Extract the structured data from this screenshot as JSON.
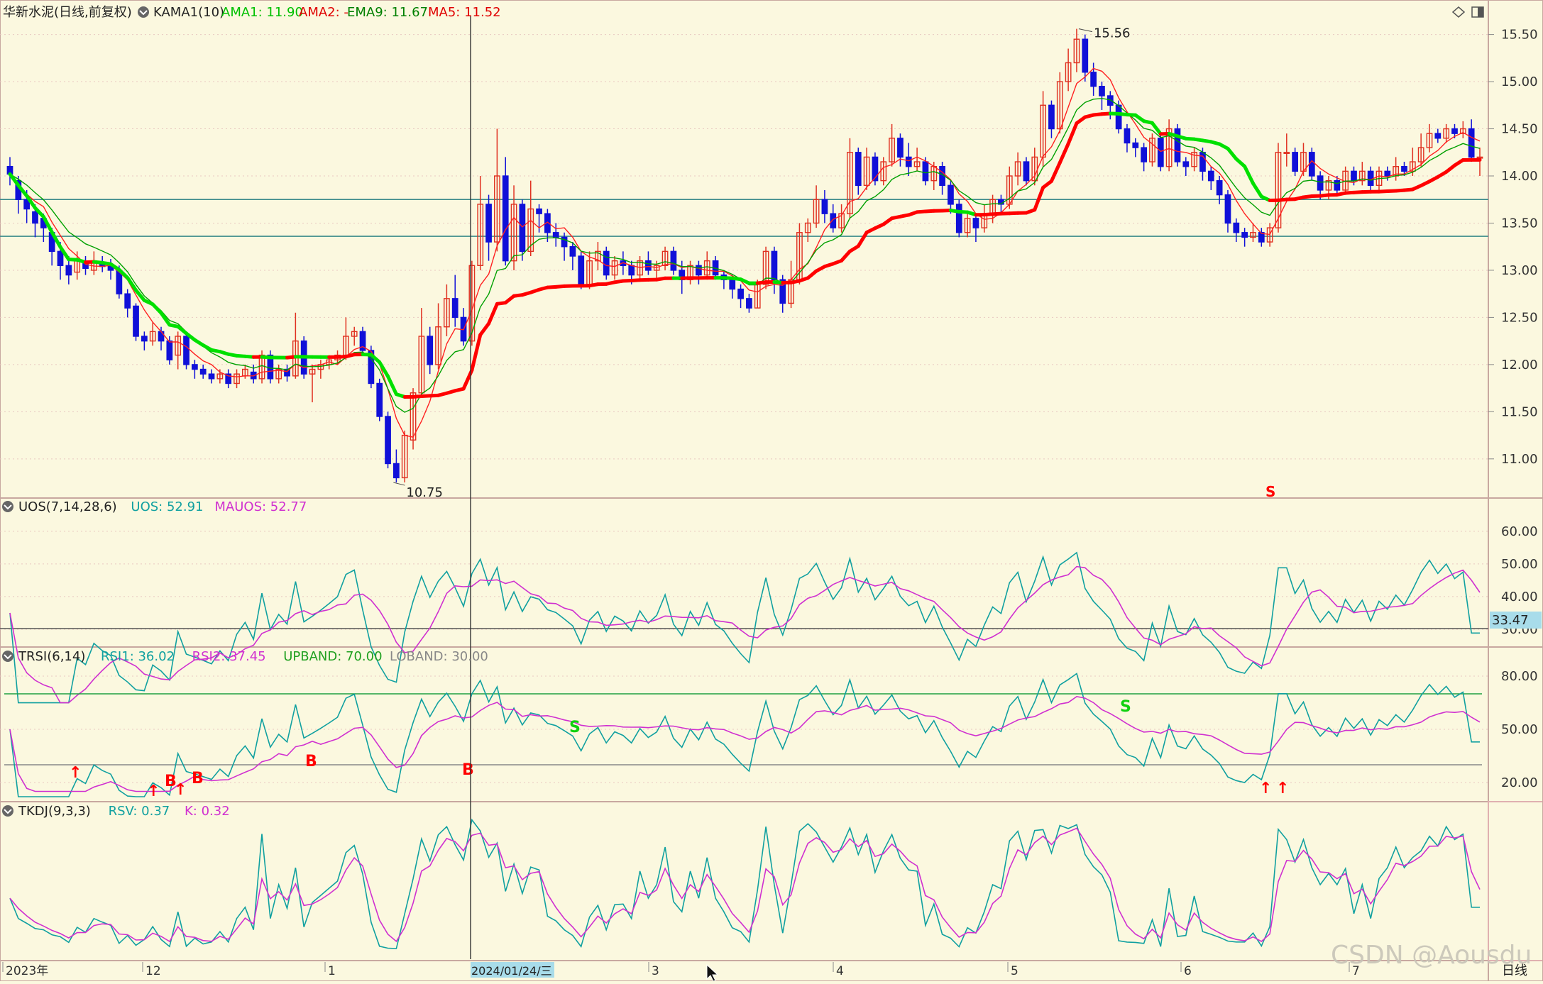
{
  "colors": {
    "background": "#fbf8df",
    "grid": "#e8c8c0",
    "separator": "#b0a890",
    "up_candle": "#e03020",
    "down_candle": "#1010d8",
    "kama_up": "#ff0000",
    "kama_down": "#00e000",
    "ema9": "#00a000",
    "ma5": "#ff2020",
    "cyan": "#10a0a0",
    "magenta": "#d030d0",
    "band": "#20a040",
    "hline": "#3a8a8a",
    "signal_red": "#ff0000",
    "signal_green": "#10d010"
  },
  "header": {
    "stock": "华新水泥(日线,前复权)",
    "indicator": "KAMA1(10)",
    "ama1": "AMA1: 11.90",
    "ama2": "AMA2: -",
    "ema9": "EMA9: 11.67",
    "ma5": "MA5: 11.52",
    "icons": [
      "diamond-icon",
      "window-toggle-icon"
    ]
  },
  "price_pane": {
    "ticks": [
      "15.50",
      "15.00",
      "14.50",
      "14.00",
      "13.50",
      "13.00",
      "12.50",
      "12.00",
      "11.50",
      "11.00"
    ],
    "high_label": "15.56",
    "low_label": "10.75",
    "sell_marker": "S"
  },
  "uos_pane": {
    "name": "UOS(7,14,28,6)",
    "uos": "UOS: 52.91",
    "mauos": "MAUOS: 52.77",
    "ticks": [
      "60.00",
      "50.00",
      "40.00",
      "30.00"
    ],
    "cursor_value": "33.47"
  },
  "trsi_pane": {
    "name": "TRSI(6,14)",
    "rsi1": "RSI1: 36.02",
    "rsi2": "RSI2: 37.45",
    "upband": "UPBAND: 70.00",
    "loband": "LOBAND: 30.00",
    "ticks": [
      "80.00",
      "50.00",
      "20.00"
    ],
    "buy_label": "B",
    "sell_label": "S"
  },
  "tkdj_pane": {
    "name": "TKDJ(9,3,3)",
    "rsv": "RSV: 0.37",
    "k": "K: 0.32"
  },
  "time_axis": {
    "labels": [
      "2023年",
      "12",
      "1",
      "2024/01/24/三",
      "3",
      "4",
      "5",
      "6",
      "7"
    ],
    "period": "日线"
  },
  "watermark": "CSDN @Aousdu",
  "chart_data": {
    "type": "candlestick",
    "period": "daily",
    "y_range": [
      10.6,
      15.7
    ],
    "y_ticks": [
      15.5,
      15.0,
      14.5,
      14.0,
      13.5,
      13.0,
      12.5,
      12.0,
      11.5,
      11.0
    ],
    "high": 15.56,
    "low": 10.75,
    "horizontal_levels": [
      13.75,
      13.36
    ],
    "candles": [
      [
        14.1,
        14.02,
        14.2,
        13.9
      ],
      [
        13.95,
        13.75,
        14.0,
        13.6
      ],
      [
        13.75,
        13.65,
        13.85,
        13.5
      ],
      [
        13.62,
        13.5,
        13.7,
        13.35
      ],
      [
        13.55,
        13.45,
        13.6,
        13.3
      ],
      [
        13.4,
        13.2,
        13.45,
        13.05
      ],
      [
        13.2,
        13.05,
        13.3,
        12.9
      ],
      [
        13.05,
        12.95,
        13.15,
        12.85
      ],
      [
        12.98,
        13.1,
        13.2,
        12.9
      ],
      [
        13.08,
        13.02,
        13.15,
        12.95
      ],
      [
        13.0,
        13.1,
        13.2,
        12.95
      ],
      [
        13.08,
        13.04,
        13.15,
        12.98
      ],
      [
        13.05,
        13.0,
        13.12,
        12.9
      ],
      [
        13.0,
        12.75,
        13.05,
        12.7
      ],
      [
        12.75,
        12.6,
        12.8,
        12.5
      ],
      [
        12.62,
        12.3,
        12.65,
        12.25
      ],
      [
        12.3,
        12.25,
        12.35,
        12.15
      ],
      [
        12.25,
        12.35,
        12.45,
        12.2
      ],
      [
        12.35,
        12.25,
        12.4,
        12.15
      ],
      [
        12.25,
        12.05,
        12.3,
        12.0
      ],
      [
        12.1,
        12.3,
        12.35,
        11.95
      ],
      [
        12.3,
        12.0,
        12.35,
        11.95
      ],
      [
        12.0,
        11.95,
        12.05,
        11.85
      ],
      [
        11.95,
        11.9,
        12.0,
        11.85
      ],
      [
        11.9,
        11.85,
        11.95,
        11.8
      ],
      [
        11.85,
        11.9,
        11.95,
        11.8
      ],
      [
        11.9,
        11.8,
        11.95,
        11.75
      ],
      [
        11.8,
        11.9,
        11.95,
        11.75
      ],
      [
        11.88,
        11.95,
        12.0,
        11.85
      ],
      [
        11.92,
        11.85,
        12.0,
        11.8
      ],
      [
        11.85,
        12.1,
        12.15,
        11.8
      ],
      [
        12.1,
        11.85,
        12.15,
        11.8
      ],
      [
        11.85,
        11.95,
        12.0,
        11.8
      ],
      [
        11.95,
        11.88,
        12.0,
        11.82
      ],
      [
        11.88,
        12.25,
        12.55,
        11.85
      ],
      [
        12.25,
        11.9,
        12.3,
        11.85
      ],
      [
        11.9,
        11.95,
        12.0,
        11.6
      ],
      [
        11.95,
        12.0,
        12.05,
        11.85
      ],
      [
        12.0,
        12.05,
        12.1,
        11.95
      ],
      [
        12.05,
        12.1,
        12.15,
        12.0
      ],
      [
        12.1,
        12.3,
        12.5,
        12.05
      ],
      [
        12.3,
        12.35,
        12.4,
        12.2
      ],
      [
        12.35,
        12.15,
        12.4,
        12.1
      ],
      [
        12.15,
        11.8,
        12.2,
        11.75
      ],
      [
        11.8,
        11.45,
        11.85,
        11.4
      ],
      [
        11.45,
        10.95,
        11.5,
        10.9
      ],
      [
        10.95,
        10.8,
        11.1,
        10.75
      ],
      [
        10.8,
        11.25,
        11.3,
        10.75
      ],
      [
        11.2,
        11.7,
        11.75,
        11.1
      ],
      [
        11.7,
        12.3,
        12.6,
        11.65
      ],
      [
        12.3,
        12.0,
        12.4,
        11.9
      ],
      [
        12.0,
        12.4,
        12.65,
        11.95
      ],
      [
        12.4,
        12.7,
        12.85,
        12.3
      ],
      [
        12.7,
        12.5,
        12.95,
        12.4
      ],
      [
        12.5,
        12.25,
        12.6,
        12.2
      ],
      [
        12.25,
        13.05,
        13.1,
        12.2
      ],
      [
        13.05,
        13.7,
        14.0,
        13.0
      ],
      [
        13.7,
        13.3,
        13.8,
        13.1
      ],
      [
        13.3,
        14.0,
        14.5,
        13.2
      ],
      [
        14.0,
        13.1,
        14.2,
        13.05
      ],
      [
        13.1,
        13.7,
        13.9,
        13.0
      ],
      [
        13.7,
        13.2,
        13.75,
        13.1
      ],
      [
        13.2,
        13.65,
        13.95,
        13.15
      ],
      [
        13.65,
        13.6,
        13.7,
        13.4
      ],
      [
        13.6,
        13.4,
        13.65,
        13.3
      ],
      [
        13.4,
        13.35,
        13.5,
        13.25
      ],
      [
        13.35,
        13.25,
        13.4,
        13.1
      ],
      [
        13.25,
        13.15,
        13.3,
        13.0
      ],
      [
        13.15,
        12.85,
        13.2,
        12.8
      ],
      [
        12.85,
        13.1,
        13.2,
        12.8
      ],
      [
        13.1,
        13.2,
        13.3,
        13.0
      ],
      [
        13.2,
        12.95,
        13.25,
        12.9
      ],
      [
        12.95,
        13.1,
        13.15,
        12.9
      ],
      [
        13.1,
        13.05,
        13.2,
        12.95
      ],
      [
        13.05,
        12.95,
        13.1,
        12.85
      ],
      [
        12.95,
        13.1,
        13.15,
        12.9
      ],
      [
        13.1,
        13.0,
        13.2,
        12.95
      ],
      [
        13.0,
        13.05,
        13.1,
        12.9
      ],
      [
        13.05,
        13.2,
        13.25,
        13.0
      ],
      [
        13.2,
        13.0,
        13.25,
        12.95
      ],
      [
        13.0,
        12.9,
        13.1,
        12.75
      ],
      [
        12.9,
        13.05,
        13.1,
        12.85
      ],
      [
        13.05,
        12.95,
        13.1,
        12.85
      ],
      [
        12.95,
        13.1,
        13.2,
        12.9
      ],
      [
        13.1,
        12.95,
        13.15,
        12.9
      ],
      [
        12.95,
        12.9,
        13.0,
        12.8
      ],
      [
        12.9,
        12.8,
        12.95,
        12.7
      ],
      [
        12.8,
        12.7,
        12.85,
        12.6
      ],
      [
        12.7,
        12.6,
        12.75,
        12.55
      ],
      [
        12.6,
        12.85,
        12.9,
        12.6
      ],
      [
        12.85,
        13.2,
        13.25,
        12.8
      ],
      [
        13.2,
        12.9,
        13.25,
        12.75
      ],
      [
        12.9,
        12.65,
        12.95,
        12.55
      ],
      [
        12.65,
        12.9,
        13.1,
        12.6
      ],
      [
        12.9,
        13.4,
        13.5,
        12.85
      ],
      [
        13.4,
        13.5,
        13.55,
        13.3
      ],
      [
        13.5,
        13.75,
        13.9,
        13.45
      ],
      [
        13.75,
        13.6,
        13.85,
        13.5
      ],
      [
        13.6,
        13.45,
        13.7,
        13.4
      ],
      [
        13.45,
        13.6,
        13.7,
        13.4
      ],
      [
        13.6,
        14.25,
        14.4,
        13.55
      ],
      [
        14.25,
        13.9,
        14.3,
        13.8
      ],
      [
        13.9,
        14.2,
        14.3,
        13.85
      ],
      [
        14.2,
        13.95,
        14.25,
        13.9
      ],
      [
        13.95,
        14.15,
        14.2,
        13.9
      ],
      [
        14.15,
        14.4,
        14.55,
        14.1
      ],
      [
        14.4,
        14.2,
        14.45,
        14.1
      ],
      [
        14.2,
        14.1,
        14.35,
        14.0
      ],
      [
        14.1,
        14.15,
        14.3,
        14.05
      ],
      [
        14.15,
        13.95,
        14.2,
        13.9
      ],
      [
        13.95,
        14.1,
        14.15,
        13.85
      ],
      [
        14.1,
        13.9,
        14.15,
        13.8
      ],
      [
        13.9,
        13.7,
        13.95,
        13.6
      ],
      [
        13.7,
        13.4,
        13.75,
        13.35
      ],
      [
        13.4,
        13.55,
        13.6,
        13.35
      ],
      [
        13.55,
        13.45,
        13.6,
        13.3
      ],
      [
        13.45,
        13.6,
        13.7,
        13.4
      ],
      [
        13.6,
        13.75,
        13.8,
        13.5
      ],
      [
        13.75,
        13.7,
        13.8,
        13.6
      ],
      [
        13.7,
        14.0,
        14.1,
        13.65
      ],
      [
        14.0,
        14.15,
        14.25,
        13.9
      ],
      [
        14.15,
        13.95,
        14.2,
        13.9
      ],
      [
        13.95,
        14.2,
        14.3,
        13.9
      ],
      [
        14.2,
        14.75,
        14.9,
        14.1
      ],
      [
        14.75,
        14.5,
        14.8,
        14.4
      ],
      [
        14.5,
        15.0,
        15.1,
        14.45
      ],
      [
        15.0,
        15.2,
        15.35,
        14.9
      ],
      [
        15.2,
        15.45,
        15.56,
        15.1
      ],
      [
        15.45,
        15.1,
        15.5,
        15.0
      ],
      [
        15.1,
        14.95,
        15.2,
        14.85
      ],
      [
        14.95,
        14.85,
        15.0,
        14.7
      ],
      [
        14.85,
        14.75,
        14.9,
        14.6
      ],
      [
        14.75,
        14.5,
        14.8,
        14.45
      ],
      [
        14.5,
        14.35,
        14.55,
        14.25
      ],
      [
        14.35,
        14.3,
        14.4,
        14.2
      ],
      [
        14.3,
        14.15,
        14.35,
        14.05
      ],
      [
        14.15,
        14.4,
        14.45,
        14.1
      ],
      [
        14.4,
        14.1,
        14.45,
        14.05
      ],
      [
        14.1,
        14.5,
        14.6,
        14.05
      ],
      [
        14.5,
        14.15,
        14.55,
        14.1
      ],
      [
        14.15,
        14.1,
        14.2,
        14.0
      ],
      [
        14.1,
        14.25,
        14.3,
        14.05
      ],
      [
        14.25,
        14.05,
        14.3,
        13.95
      ],
      [
        14.05,
        13.95,
        14.1,
        13.85
      ],
      [
        13.95,
        13.8,
        14.0,
        13.7
      ],
      [
        13.8,
        13.5,
        13.85,
        13.4
      ],
      [
        13.5,
        13.4,
        13.55,
        13.3
      ],
      [
        13.4,
        13.35,
        13.45,
        13.25
      ],
      [
        13.35,
        13.4,
        13.5,
        13.3
      ],
      [
        13.4,
        13.3,
        13.45,
        13.25
      ],
      [
        13.3,
        13.45,
        13.5,
        13.25
      ],
      [
        13.45,
        14.25,
        14.35,
        13.4
      ],
      [
        14.25,
        14.25,
        14.45,
        14.1
      ],
      [
        14.25,
        14.05,
        14.3,
        14.0
      ],
      [
        14.05,
        14.25,
        14.35,
        14.0
      ],
      [
        14.25,
        14.0,
        14.3,
        13.95
      ],
      [
        14.0,
        13.85,
        14.05,
        13.75
      ],
      [
        13.85,
        13.95,
        14.0,
        13.75
      ],
      [
        13.95,
        13.85,
        14.0,
        13.8
      ],
      [
        13.85,
        14.05,
        14.1,
        13.8
      ],
      [
        14.05,
        13.95,
        14.1,
        13.9
      ],
      [
        13.95,
        14.05,
        14.15,
        13.9
      ],
      [
        14.05,
        13.9,
        14.1,
        13.85
      ],
      [
        13.9,
        14.05,
        14.1,
        13.85
      ],
      [
        14.05,
        14.0,
        14.1,
        13.95
      ],
      [
        14.0,
        14.1,
        14.2,
        13.95
      ],
      [
        14.1,
        14.05,
        14.15,
        14.0
      ],
      [
        14.05,
        14.15,
        14.3,
        14.0
      ],
      [
        14.15,
        14.3,
        14.45,
        14.1
      ],
      [
        14.3,
        14.45,
        14.55,
        14.25
      ],
      [
        14.45,
        14.4,
        14.5,
        14.35
      ],
      [
        14.4,
        14.5,
        14.55,
        14.35
      ],
      [
        14.5,
        14.45,
        14.55,
        14.4
      ],
      [
        14.45,
        14.5,
        14.58,
        14.4
      ],
      [
        14.5,
        14.2,
        14.6,
        14.15
      ],
      [
        14.2,
        14.2,
        14.3,
        14.0
      ]
    ],
    "uos": {
      "range": [
        25,
        68
      ],
      "series": [
        "UOS",
        "MAUOS"
      ]
    },
    "trsi": {
      "range": [
        10,
        90
      ],
      "series": [
        "RSI1",
        "RSI2"
      ],
      "upband": 70,
      "loband": 30
    },
    "tkdj": {
      "series": [
        "RSV",
        "K"
      ]
    }
  }
}
